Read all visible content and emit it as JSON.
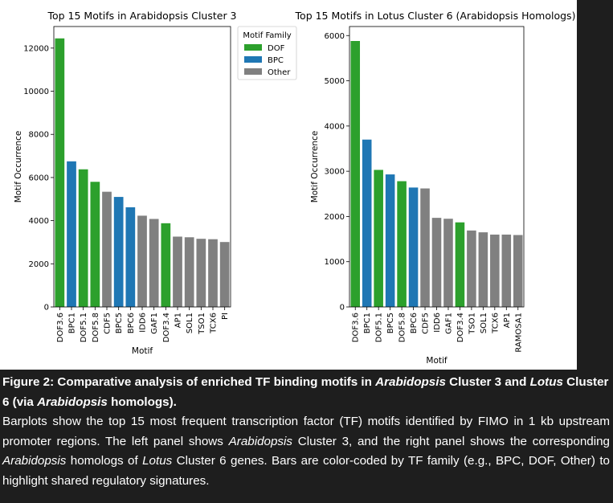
{
  "chart_data": [
    {
      "type": "bar",
      "title": "Top 15 Motifs in Arabidopsis Cluster 3",
      "xlabel": "Motif",
      "ylabel": "Motif Occurrence",
      "ylim": [
        0,
        13000
      ],
      "yticks": [
        0,
        2000,
        4000,
        6000,
        8000,
        10000,
        12000
      ],
      "categories": [
        "DOF3.6",
        "BPC1",
        "DOF5.1",
        "DOF5.8",
        "CDF5",
        "BPC5",
        "BPC6",
        "IDD6",
        "GAF1",
        "DOF3.4",
        "AP1",
        "SOL1",
        "TSO1",
        "TCX6",
        "PI"
      ],
      "values": [
        12450,
        6750,
        6380,
        5800,
        5340,
        5100,
        4620,
        4230,
        4080,
        3880,
        3260,
        3230,
        3160,
        3140,
        3010
      ],
      "families": [
        "DOF",
        "BPC",
        "DOF",
        "DOF",
        "Other",
        "BPC",
        "BPC",
        "Other",
        "Other",
        "DOF",
        "Other",
        "Other",
        "Other",
        "Other",
        "Other"
      ],
      "grid": false,
      "legend": {
        "title": "Motif Family",
        "placement": "top-right",
        "entries": [
          {
            "label": "DOF",
            "color": "#2ca02c"
          },
          {
            "label": "BPC",
            "color": "#1f77b4"
          },
          {
            "label": "Other",
            "color": "#808080"
          }
        ]
      }
    },
    {
      "type": "bar",
      "title": "Top 15 Motifs in Lotus Cluster 6 (Arabidopsis Homologs)",
      "xlabel": "Motif",
      "ylabel": "Motif Occurrence",
      "ylim": [
        0,
        6200
      ],
      "yticks": [
        0,
        1000,
        2000,
        3000,
        4000,
        5000,
        6000
      ],
      "categories": [
        "DOF3.6",
        "BPC1",
        "DOF5.1",
        "BPC5",
        "DOF5.8",
        "BPC6",
        "CDF5",
        "IDD6",
        "GAF1",
        "DOF3.4",
        "TSO1",
        "SOL1",
        "TCX6",
        "AP1",
        "RAMOSA1"
      ],
      "values": [
        5880,
        3700,
        3030,
        2930,
        2780,
        2640,
        2620,
        1970,
        1950,
        1870,
        1690,
        1650,
        1600,
        1600,
        1590
      ],
      "families": [
        "DOF",
        "BPC",
        "DOF",
        "BPC",
        "DOF",
        "BPC",
        "Other",
        "Other",
        "Other",
        "DOF",
        "Other",
        "Other",
        "Other",
        "Other",
        "Other"
      ],
      "grid": false
    }
  ],
  "colors": {
    "DOF": "#2ca02c",
    "BPC": "#1f77b4",
    "Other": "#808080"
  },
  "caption": {
    "title_parts": [
      {
        "text": "Figure 2: Comparative analysis of enriched TF binding motifs in ",
        "italic": false
      },
      {
        "text": "Arabidopsis",
        "italic": true
      },
      {
        "text": " Cluster 3 and ",
        "italic": false
      },
      {
        "text": "Lotus",
        "italic": true
      },
      {
        "text": " Cluster 6 (via ",
        "italic": false
      },
      {
        "text": "Arabidopsis",
        "italic": true
      },
      {
        "text": " homologs).",
        "italic": false
      }
    ],
    "body_parts": [
      {
        "text": "Barplots show the top 15 most frequent transcription factor (TF) motifs identified by FIMO in 1 kb upstream promoter regions. The left panel shows ",
        "italic": false
      },
      {
        "text": "Arabidopsis",
        "italic": true
      },
      {
        "text": " Cluster 3, and the right panel shows the corresponding ",
        "italic": false
      },
      {
        "text": "Arabidopsis",
        "italic": true
      },
      {
        "text": " homologs of ",
        "italic": false
      },
      {
        "text": "Lotus",
        "italic": true
      },
      {
        "text": " Cluster 6 genes. Bars are color-coded by TF family (e.g., BPC, DOF, Other) to highlight shared regulatory signatures.",
        "italic": false
      }
    ]
  }
}
